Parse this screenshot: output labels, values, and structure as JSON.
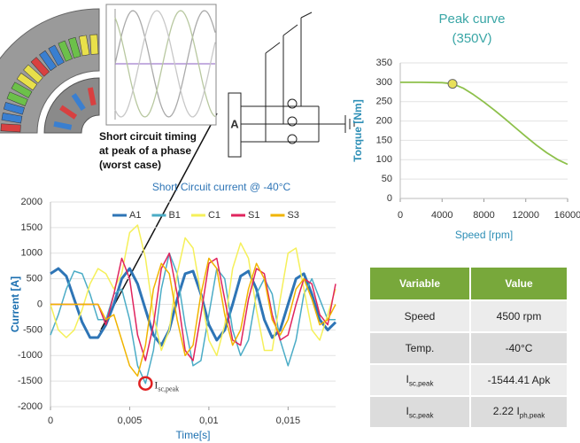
{
  "chart_data": [
    {
      "type": "line",
      "title": "Short Circuit current @ -40°C",
      "xlabel": "Time[s]",
      "ylabel": "Current [A]",
      "x": [
        0,
        0.0005,
        0.001,
        0.0015,
        0.002,
        0.0025,
        0.003,
        0.0035,
        0.004,
        0.0045,
        0.005,
        0.0055,
        0.006,
        0.0065,
        0.007,
        0.0075,
        0.008,
        0.0085,
        0.009,
        0.0095,
        0.01,
        0.0105,
        0.011,
        0.0115,
        0.012,
        0.0125,
        0.013,
        0.0135,
        0.014,
        0.0145,
        0.015,
        0.0155,
        0.016,
        0.0165,
        0.017,
        0.0175,
        0.018
      ],
      "series": [
        {
          "name": "A1",
          "color": "#2e75b6",
          "width": 3,
          "values": [
            600,
            700,
            550,
            100,
            -350,
            -650,
            -650,
            -400,
            0,
            500,
            700,
            400,
            -100,
            -600,
            -800,
            -500,
            100,
            600,
            650,
            200,
            -400,
            -700,
            -500,
            0,
            550,
            650,
            300,
            -300,
            -650,
            -500,
            0,
            500,
            600,
            200,
            -300,
            -500,
            -350
          ]
        },
        {
          "name": "B1",
          "color": "#4bacc6",
          "width": 1.5,
          "values": [
            -600,
            -200,
            300,
            650,
            600,
            200,
            -300,
            -300,
            200,
            300,
            -300,
            -1200,
            -1544.41,
            -900,
            300,
            1000,
            600,
            -400,
            -1200,
            -1100,
            -200,
            700,
            500,
            -500,
            -1000,
            -700,
            200,
            500,
            200,
            -700,
            -1200,
            -700,
            200,
            500,
            100,
            -300,
            -300
          ]
        },
        {
          "name": "C1",
          "color": "#f5f05a",
          "width": 1.5,
          "values": [
            0,
            -500,
            -650,
            -500,
            -100,
            400,
            700,
            600,
            300,
            600,
            1400,
            1550,
            900,
            -200,
            -900,
            -500,
            600,
            1300,
            1100,
            200,
            -700,
            -1000,
            -400,
            700,
            1200,
            900,
            -100,
            -900,
            -900,
            100,
            1000,
            1100,
            300,
            -500,
            -700,
            -200,
            300
          ]
        },
        {
          "name": "S1",
          "color": "#e0245e",
          "width": 1.5,
          "values": [
            0,
            0,
            0,
            0,
            0,
            0,
            0,
            -400,
            200,
            900,
            500,
            -600,
            -1100,
            -400,
            700,
            1000,
            200,
            -900,
            -1100,
            -200,
            800,
            900,
            100,
            -700,
            -800,
            100,
            700,
            600,
            -200,
            -700,
            -600,
            0,
            500,
            400,
            -200,
            -400,
            400
          ]
        },
        {
          "name": "S3",
          "color": "#f0b400",
          "width": 1.5,
          "values": [
            0,
            0,
            0,
            0,
            0,
            0,
            0,
            -300,
            -200,
            -700,
            -1200,
            -1400,
            -800,
            300,
            800,
            600,
            -300,
            -1000,
            -800,
            200,
            900,
            700,
            -200,
            -800,
            -500,
            300,
            800,
            500,
            -300,
            -600,
            -300,
            300,
            500,
            100,
            -400,
            -300,
            0
          ]
        }
      ],
      "xlim": [
        0,
        0.018
      ],
      "ylim": [
        -2000,
        2000
      ],
      "xticks": [
        0,
        {
          "value": 0.005,
          "label": "0,005"
        },
        {
          "value": 0.01,
          "label": "0,01"
        },
        {
          "value": 0.015,
          "label": "0,015"
        }
      ],
      "yticks": [
        -2000,
        -1500,
        -1000,
        -500,
        0,
        500,
        1000,
        1500,
        2000
      ],
      "grid": true,
      "annotation": {
        "text": "I",
        "sub": "sc,peak"
      }
    },
    {
      "type": "line",
      "title": "Peak curve",
      "subtitle": "(350V)",
      "xlabel": "Speed [rpm]",
      "ylabel": "Torque [Nm]",
      "x": [
        0,
        2000,
        4000,
        5000,
        6000,
        7000,
        8000,
        9000,
        10000,
        11000,
        12000,
        13000,
        14000,
        15000,
        16000
      ],
      "series": [
        {
          "color": "#8dc04a",
          "width": 1.8,
          "values": [
            300,
            300,
            299,
            296,
            285,
            268,
            249,
            228,
            206,
            183,
            160,
            138,
            118,
            101,
            88
          ]
        }
      ],
      "marker": {
        "x": 5000,
        "y": 296,
        "color": "#e8e05a"
      },
      "xlim": [
        0,
        16000
      ],
      "ylim": [
        0,
        350
      ],
      "xticks": [
        0,
        4000,
        8000,
        12000,
        16000
      ],
      "yticks": [
        0,
        50,
        100,
        150,
        200,
        250,
        300,
        350
      ],
      "grid": true
    }
  ],
  "annotation": [
    "Short circuit timing",
    "at peak of a phase",
    "(worst case)"
  ],
  "circuit": {
    "label": "A"
  },
  "table": {
    "header": [
      "Variable",
      "Value"
    ],
    "rows": [
      [
        {
          "text": "Speed"
        },
        {
          "text": "4500 rpm"
        }
      ],
      [
        {
          "text": "Temp."
        },
        {
          "text": "-40°C"
        }
      ],
      [
        {
          "text": "I",
          "sub": "sc,peak"
        },
        {
          "text": "-1544.41 Apk"
        }
      ],
      [
        {
          "text": "I",
          "sub": "sc,peak"
        },
        {
          "text": "2.22 I",
          "sub": "ph,peak"
        }
      ]
    ]
  }
}
